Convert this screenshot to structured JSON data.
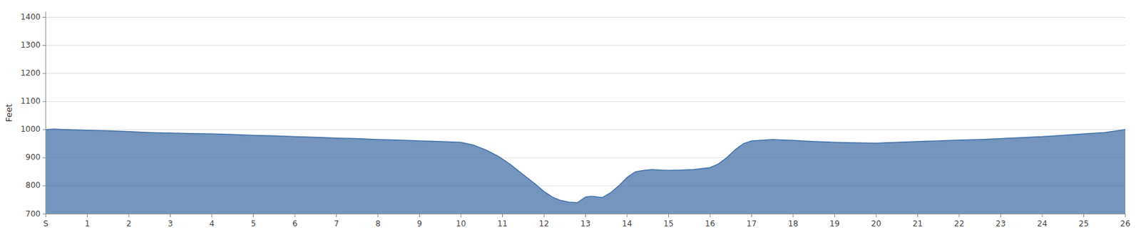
{
  "chart_data": {
    "type": "area",
    "y_label": "Feet",
    "color": "#4472a8",
    "grid": true,
    "xlim": [
      0,
      26
    ],
    "ylim": [
      700,
      1420
    ],
    "xticks": [
      {
        "value": 0,
        "label": "S"
      },
      1,
      2,
      3,
      4,
      5,
      6,
      7,
      8,
      9,
      10,
      11,
      12,
      13,
      14,
      15,
      16,
      17,
      18,
      19,
      20,
      21,
      22,
      23,
      24,
      25,
      26
    ],
    "yticks": [
      700,
      800,
      900,
      1000,
      1100,
      1200,
      1300,
      1400
    ],
    "x": [
      0,
      0.2,
      0.5,
      1.0,
      1.5,
      2.0,
      2.5,
      3.0,
      3.5,
      4.0,
      4.5,
      5.0,
      5.5,
      6.0,
      6.5,
      7.0,
      7.5,
      8.0,
      8.5,
      9.0,
      9.5,
      10.0,
      10.3,
      10.6,
      10.9,
      11.2,
      11.5,
      11.8,
      12.0,
      12.2,
      12.4,
      12.6,
      12.8,
      13.0,
      13.1,
      13.2,
      13.4,
      13.6,
      13.8,
      14.0,
      14.2,
      14.4,
      14.6,
      14.8,
      15.0,
      15.3,
      15.6,
      16.0,
      16.2,
      16.4,
      16.6,
      16.8,
      17.0,
      17.5,
      18.0,
      18.5,
      19.0,
      19.5,
      20.0,
      20.5,
      21.0,
      21.5,
      22.0,
      22.5,
      23.0,
      23.5,
      24.0,
      24.5,
      25.0,
      25.5,
      26.0
    ],
    "values": [
      1000,
      1002,
      1000,
      998,
      996,
      993,
      990,
      988,
      986,
      985,
      983,
      980,
      978,
      975,
      973,
      970,
      968,
      965,
      963,
      960,
      958,
      955,
      945,
      928,
      905,
      875,
      840,
      805,
      780,
      760,
      748,
      742,
      740,
      760,
      762,
      762,
      758,
      775,
      800,
      830,
      850,
      855,
      858,
      856,
      855,
      856,
      858,
      865,
      878,
      900,
      928,
      950,
      960,
      965,
      962,
      958,
      955,
      953,
      952,
      955,
      958,
      960,
      963,
      965,
      968,
      972,
      975,
      980,
      985,
      990,
      1000
    ]
  }
}
